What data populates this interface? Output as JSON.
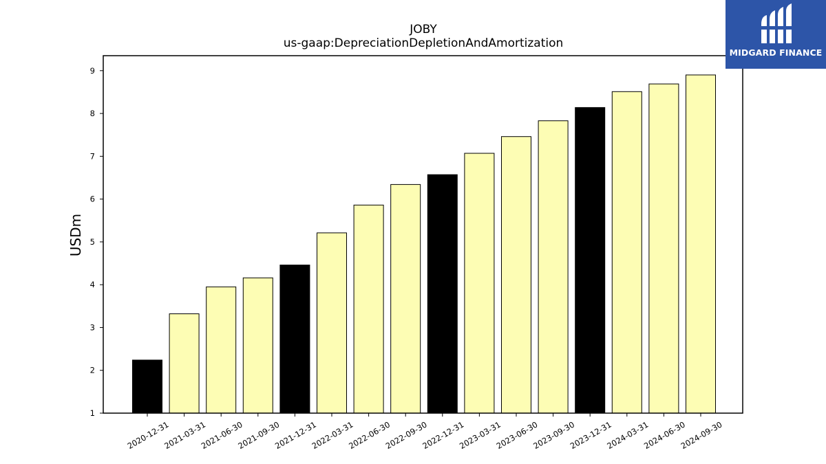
{
  "chart_data": {
    "type": "bar",
    "title": "JOBY",
    "subtitle": "us-gaap:DepreciationDepletionAndAmortization",
    "xlabel": "",
    "ylabel": "USDm",
    "ylim": [
      1,
      9.35
    ],
    "yticks": [
      "1",
      "2",
      "3",
      "4",
      "5",
      "6",
      "7",
      "8",
      "9"
    ],
    "categories": [
      "2020-12-31",
      "2021-03-31",
      "2021-06-30",
      "2021-09-30",
      "2021-12-31",
      "2022-03-31",
      "2022-06-30",
      "2022-09-30",
      "2022-12-31",
      "2023-03-31",
      "2023-06-30",
      "2023-09-30",
      "2023-12-31",
      "2024-03-31",
      "2024-06-30",
      "2024-09-30"
    ],
    "values": [
      2.24,
      3.32,
      3.95,
      4.16,
      4.46,
      5.21,
      5.86,
      6.34,
      6.57,
      7.07,
      7.46,
      7.83,
      8.14,
      8.51,
      8.69,
      8.9
    ],
    "bar_colors": [
      "#000000",
      "#fdfdb4",
      "#fdfdb4",
      "#fdfdb4",
      "#000000",
      "#fdfdb4",
      "#fdfdb4",
      "#fdfdb4",
      "#000000",
      "#fdfdb4",
      "#fdfdb4",
      "#fdfdb4",
      "#000000",
      "#fdfdb4",
      "#fdfdb4",
      "#fdfdb4"
    ],
    "grid": false,
    "legend": "none"
  },
  "logo": {
    "text": "MIDGARD FINANCE",
    "background": "#2d55a8"
  }
}
